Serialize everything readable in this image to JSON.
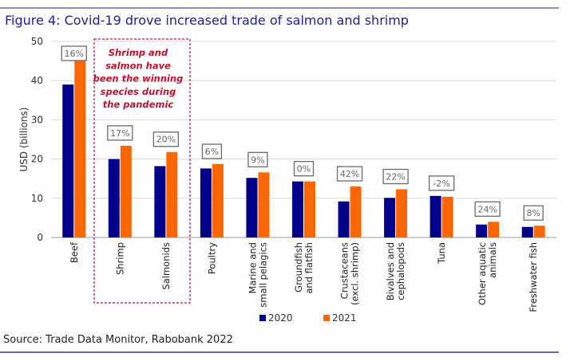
{
  "title": "Figure 4: Covid-19 drove increased trade of salmon and shrimp",
  "source": "Source: Trade Data Monitor, Rabobank 2022",
  "colors": {
    "title": "#1f1f8f",
    "rule": "#6b6bb0",
    "s2020": "#00008b",
    "s2021": "#ff6600",
    "annotation": "#c8102e"
  },
  "chart_data": {
    "type": "bar",
    "ylabel": "USD (billions)",
    "ylim": [
      0,
      50
    ],
    "yticks": [
      "0",
      "10",
      "20",
      "30",
      "40",
      "50"
    ],
    "grid": true,
    "legend_placement": "bottom",
    "categories": [
      [
        "Beef"
      ],
      [
        "Shrimp"
      ],
      [
        "Salmonids"
      ],
      [
        "Poultry"
      ],
      [
        "Marine and",
        "small pelagics"
      ],
      [
        "Groundfish",
        "and flatfish"
      ],
      [
        "Crustaceans",
        "(excl. shrimp)"
      ],
      [
        "Bivalves and",
        "cephalopods"
      ],
      [
        "Tuna"
      ],
      [
        "Other aquatic",
        "animals"
      ],
      [
        "Freshwater fish"
      ]
    ],
    "series": [
      {
        "name": "2020",
        "values": [
          39.0,
          20.0,
          18.2,
          17.6,
          15.2,
          14.3,
          9.2,
          10.1,
          10.6,
          3.3,
          2.7
        ]
      },
      {
        "name": "2021",
        "values": [
          45.2,
          23.4,
          21.8,
          18.7,
          16.6,
          14.3,
          13.0,
          12.3,
          10.4,
          4.0,
          3.0
        ]
      }
    ],
    "change_labels": [
      "16%",
      "17%",
      "20%",
      "6%",
      "9%",
      "0%",
      "42%",
      "22%",
      "-2%",
      "24%",
      "8%"
    ],
    "annotation": {
      "lines": [
        "Shrimp and",
        "salmon have",
        "been the winning",
        "species during",
        "the pandemic"
      ],
      "highlighted_categories": [
        "Shrimp",
        "Salmonids"
      ]
    }
  }
}
